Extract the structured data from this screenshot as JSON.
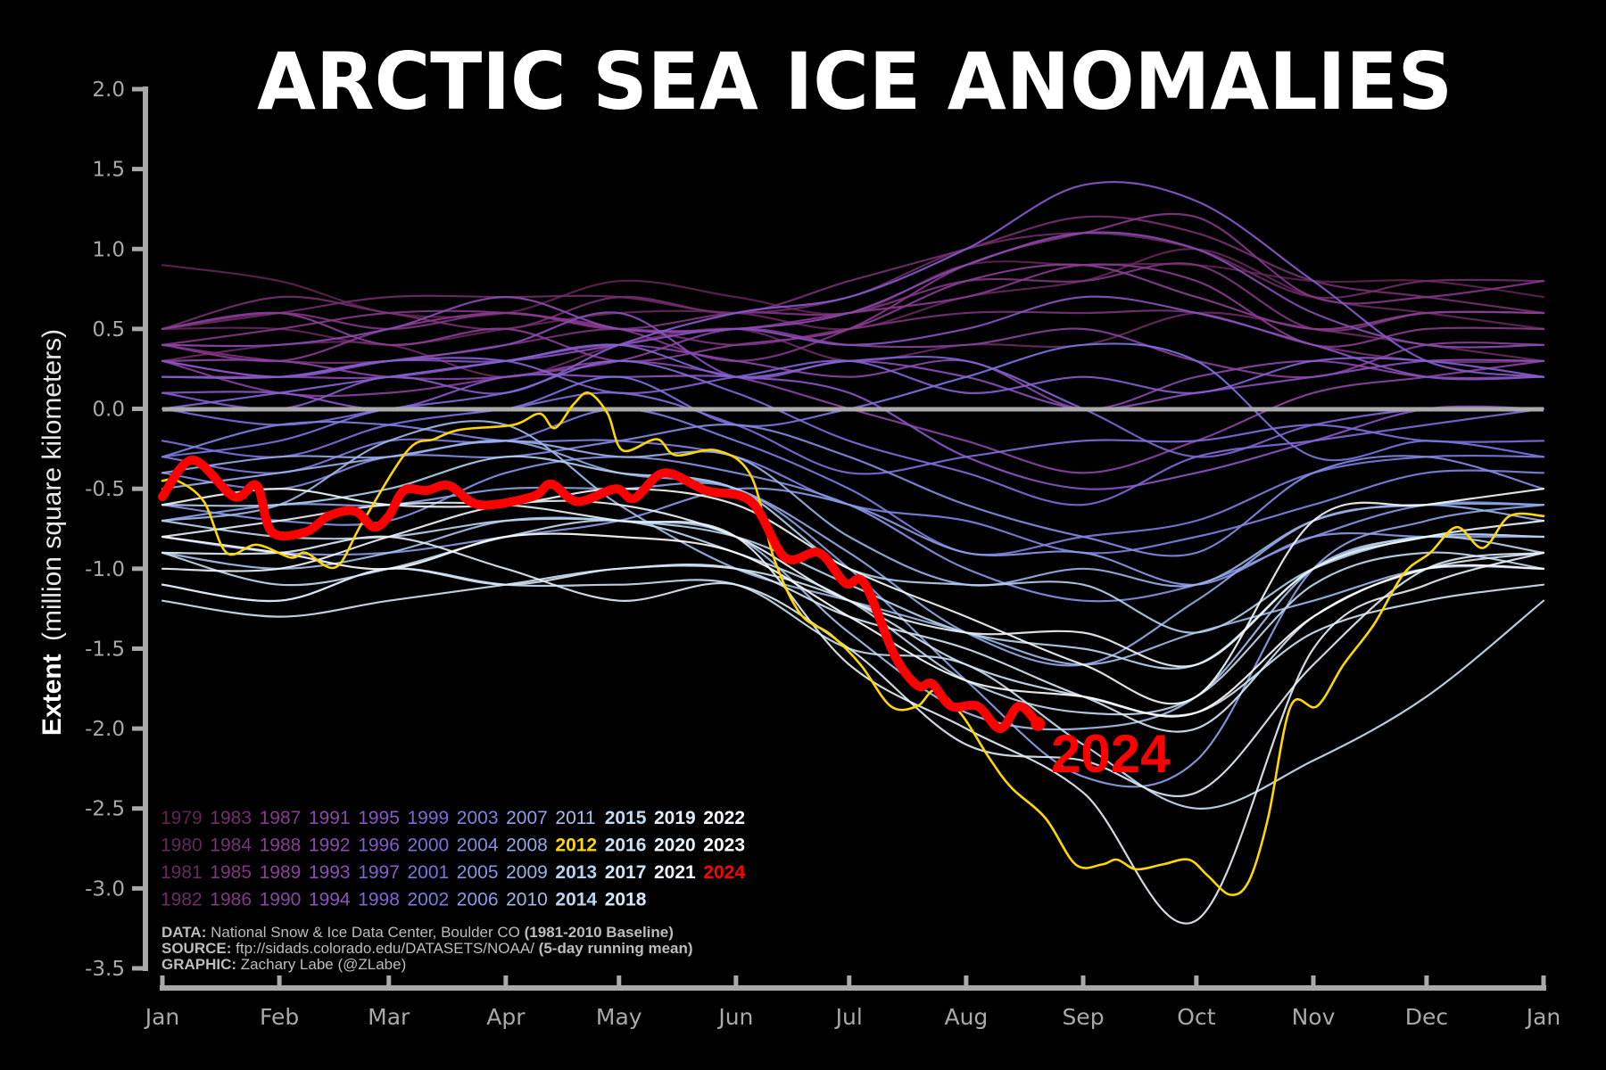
{
  "chart_data": {
    "type": "line",
    "title": "ARCTIC SEA ICE ANOMALIES",
    "ylabel_bold": "Extent",
    "ylabel_rest": "(million square kilometers)",
    "ylim": [
      -3.5,
      2.0
    ],
    "yticks": [
      "2.0",
      "1.5",
      "1.0",
      "0.5",
      "0.0",
      "-0.5",
      "-1.0",
      "-1.5",
      "-2.0",
      "-2.5",
      "-3.0",
      "-3.5"
    ],
    "xlim_days": [
      0,
      366
    ],
    "xticks": [
      "Jan",
      "Feb",
      "Mar",
      "Apr",
      "May",
      "Jun",
      "Jul",
      "Aug",
      "Sep",
      "Oct",
      "Nov",
      "Dec",
      "Jan"
    ],
    "xtick_days": [
      0,
      31,
      60,
      91,
      121,
      152,
      182,
      213,
      244,
      274,
      305,
      335,
      366
    ],
    "zero_line_color": "#aaaaaa",
    "colormap_stops": [
      {
        "year": 1979,
        "color": "#5e2452"
      },
      {
        "year": 1987,
        "color": "#8b3a90"
      },
      {
        "year": 1995,
        "color": "#8a56c8"
      },
      {
        "year": 2001,
        "color": "#7a74e0"
      },
      {
        "year": 2007,
        "color": "#8fa2e6"
      },
      {
        "year": 2013,
        "color": "#b3d2ee"
      },
      {
        "year": 2023,
        "color": "#ffffff"
      }
    ],
    "highlight_colors": {
      "2012": "#ffd700",
      "2024": "#ff0000"
    },
    "current_year_label": "2024",
    "monthly_x_days": [
      0,
      31,
      60,
      91,
      121,
      152,
      182,
      213,
      244,
      274,
      305,
      335,
      366
    ],
    "series": [
      {
        "name": "1979",
        "values": [
          0.9,
          0.8,
          0.6,
          0.6,
          0.8,
          0.7,
          0.6,
          0.9,
          0.9,
          0.9,
          0.8,
          0.8,
          0.7
        ]
      },
      {
        "name": "1980",
        "values": [
          0.5,
          0.5,
          0.4,
          0.5,
          0.6,
          0.6,
          0.5,
          0.7,
          0.8,
          1.0,
          0.7,
          0.6,
          0.5
        ]
      },
      {
        "name": "1981",
        "values": [
          0.3,
          0.4,
          0.4,
          0.2,
          0.4,
          0.5,
          0.3,
          0.4,
          0.4,
          0.6,
          0.5,
          0.4,
          0.3
        ]
      },
      {
        "name": "1982",
        "values": [
          0.5,
          0.6,
          0.7,
          0.7,
          0.7,
          0.6,
          0.7,
          1.0,
          1.1,
          1.0,
          0.7,
          0.8,
          0.8
        ]
      },
      {
        "name": "1983",
        "values": [
          0.5,
          0.7,
          0.6,
          0.5,
          0.7,
          0.6,
          0.8,
          1.0,
          1.2,
          1.1,
          0.8,
          0.7,
          0.6
        ]
      },
      {
        "name": "1984",
        "values": [
          0.4,
          0.3,
          0.3,
          0.4,
          0.5,
          0.4,
          0.5,
          0.6,
          0.6,
          0.6,
          0.4,
          0.3,
          0.3
        ]
      },
      {
        "name": "1985",
        "values": [
          0.5,
          0.6,
          0.5,
          0.6,
          0.5,
          0.6,
          0.6,
          0.8,
          0.8,
          0.9,
          0.5,
          0.6,
          0.6
        ]
      },
      {
        "name": "1986",
        "values": [
          0.4,
          0.5,
          0.6,
          0.6,
          0.5,
          0.3,
          0.5,
          0.9,
          1.1,
          1.2,
          0.7,
          0.7,
          0.8
        ]
      },
      {
        "name": "1987",
        "values": [
          0.4,
          0.3,
          0.5,
          0.6,
          0.5,
          0.5,
          0.6,
          0.7,
          0.9,
          0.8,
          0.4,
          0.5,
          0.5
        ]
      },
      {
        "name": "1988",
        "values": [
          0.5,
          0.6,
          0.4,
          0.5,
          0.3,
          0.4,
          0.5,
          0.8,
          0.9,
          0.7,
          0.5,
          0.6,
          0.6
        ]
      },
      {
        "name": "1989",
        "values": [
          0.3,
          0.1,
          0.1,
          0.2,
          0.3,
          0.5,
          0.4,
          0.4,
          0.5,
          0.3,
          0.2,
          0.4,
          0.4
        ]
      },
      {
        "name": "1990",
        "values": [
          0.3,
          0.3,
          0.2,
          0.2,
          0.3,
          0.2,
          0.0,
          -0.2,
          -0.4,
          -0.2,
          0.1,
          0.2,
          0.3
        ]
      },
      {
        "name": "1991",
        "values": [
          0.2,
          0.2,
          0.2,
          0.3,
          0.4,
          0.3,
          0.2,
          0.3,
          0.0,
          0.2,
          0.3,
          0.2,
          0.2
        ]
      },
      {
        "name": "1992",
        "values": [
          0.4,
          0.4,
          0.5,
          0.7,
          0.5,
          0.5,
          0.6,
          0.9,
          1.1,
          1.0,
          0.6,
          0.4,
          0.4
        ]
      },
      {
        "name": "1993",
        "values": [
          0.3,
          0.2,
          0.3,
          0.4,
          0.6,
          0.2,
          0.3,
          0.2,
          0.0,
          0.1,
          0.2,
          0.3,
          0.3
        ]
      },
      {
        "name": "1994",
        "values": [
          0.3,
          0.2,
          0.3,
          0.3,
          0.4,
          0.5,
          0.4,
          0.5,
          0.7,
          0.6,
          0.4,
          0.2,
          0.2
        ]
      },
      {
        "name": "1995",
        "values": [
          0.1,
          0.1,
          0.0,
          0.2,
          0.2,
          0.2,
          0.1,
          -0.3,
          -0.5,
          -0.4,
          -0.2,
          0.0,
          0.0
        ]
      },
      {
        "name": "1996",
        "values": [
          0.1,
          0.0,
          0.2,
          0.1,
          0.4,
          0.6,
          0.7,
          1.0,
          1.4,
          1.3,
          0.8,
          0.3,
          0.2
        ]
      },
      {
        "name": "1997",
        "values": [
          0.2,
          0.2,
          0.3,
          0.3,
          0.1,
          0.2,
          0.3,
          0.1,
          0.2,
          0.1,
          0.3,
          0.3,
          0.2
        ]
      },
      {
        "name": "1998",
        "values": [
          0.0,
          0.1,
          0.2,
          0.3,
          0.4,
          0.2,
          0.3,
          0.3,
          0.0,
          -0.3,
          -0.1,
          0.0,
          0.0
        ]
      },
      {
        "name": "1999",
        "values": [
          0.0,
          -0.1,
          0.0,
          0.1,
          0.3,
          0.1,
          -0.2,
          -0.4,
          -0.6,
          -0.3,
          -0.2,
          -0.1,
          0.0
        ]
      },
      {
        "name": "2000",
        "values": [
          -0.2,
          -0.3,
          -0.1,
          0.0,
          0.1,
          -0.1,
          -0.4,
          -0.3,
          -0.2,
          -0.2,
          -0.1,
          -0.2,
          -0.2
        ]
      },
      {
        "name": "2001",
        "values": [
          -0.3,
          -0.2,
          0.0,
          0.0,
          0.2,
          -0.1,
          0.0,
          0.2,
          0.4,
          0.3,
          -0.3,
          -0.2,
          -0.3
        ]
      },
      {
        "name": "2002",
        "values": [
          -0.3,
          -0.4,
          -0.2,
          -0.2,
          0.0,
          -0.2,
          -0.5,
          -0.9,
          -0.8,
          -0.7,
          -0.4,
          -0.3,
          -0.3
        ]
      },
      {
        "name": "2003",
        "values": [
          -0.3,
          -0.1,
          -0.1,
          -0.2,
          -0.2,
          -0.3,
          -0.6,
          -0.7,
          -0.9,
          -0.8,
          -0.6,
          -0.4,
          -0.4
        ]
      },
      {
        "name": "2004",
        "values": [
          -0.4,
          -0.5,
          -0.3,
          -0.3,
          -0.2,
          -0.1,
          -0.3,
          -0.6,
          -0.8,
          -0.9,
          -0.4,
          -0.3,
          -0.5
        ]
      },
      {
        "name": "2005",
        "values": [
          -0.6,
          -0.7,
          -0.7,
          -0.4,
          -0.3,
          -0.4,
          -0.6,
          -1.0,
          -1.2,
          -1.1,
          -0.8,
          -0.6,
          -0.6
        ]
      },
      {
        "name": "2006",
        "values": [
          -0.8,
          -0.9,
          -0.9,
          -0.8,
          -0.7,
          -0.5,
          -0.6,
          -0.9,
          -0.9,
          -1.1,
          -0.8,
          -0.8,
          -0.8
        ]
      },
      {
        "name": "2007",
        "values": [
          -0.7,
          -0.6,
          -0.6,
          -0.5,
          -0.5,
          -0.5,
          -1.0,
          -1.7,
          -2.3,
          -2.2,
          -1.0,
          -0.7,
          -0.6
        ]
      },
      {
        "name": "2008",
        "values": [
          -0.4,
          -0.3,
          -0.3,
          -0.2,
          -0.4,
          -0.5,
          -0.9,
          -1.4,
          -1.6,
          -1.2,
          -0.7,
          -0.6,
          -0.6
        ]
      },
      {
        "name": "2009",
        "values": [
          -0.5,
          -0.4,
          -0.3,
          -0.2,
          -0.3,
          -0.3,
          -0.8,
          -1.1,
          -1.0,
          -1.1,
          -0.7,
          -0.6,
          -0.7
        ]
      },
      {
        "name": "2010",
        "values": [
          -0.7,
          -0.6,
          -0.2,
          -0.1,
          -0.6,
          -1.0,
          -1.2,
          -1.4,
          -1.6,
          -1.4,
          -1.2,
          -1.0,
          -1.0
        ]
      },
      {
        "name": "2011",
        "values": [
          -0.9,
          -1.0,
          -0.9,
          -0.7,
          -0.7,
          -0.8,
          -1.4,
          -1.9,
          -2.0,
          -1.8,
          -1.0,
          -0.8,
          -0.8
        ]
      },
      {
        "name": "2013",
        "values": [
          -0.6,
          -0.6,
          -0.5,
          -0.3,
          -0.4,
          -0.5,
          -1.0,
          -1.1,
          -1.1,
          -1.4,
          -1.0,
          -0.8,
          -0.8
        ]
      },
      {
        "name": "2014",
        "values": [
          -0.7,
          -0.8,
          -0.8,
          -0.7,
          -0.7,
          -0.8,
          -1.1,
          -1.4,
          -1.5,
          -1.6,
          -1.0,
          -0.8,
          -0.9
        ]
      },
      {
        "name": "2015",
        "values": [
          -0.9,
          -1.1,
          -1.0,
          -0.8,
          -0.7,
          -0.9,
          -1.2,
          -1.7,
          -1.9,
          -1.8,
          -1.1,
          -0.9,
          -1.0
        ]
      },
      {
        "name": "2016",
        "values": [
          -1.1,
          -1.2,
          -1.0,
          -1.1,
          -1.1,
          -1.1,
          -1.5,
          -1.6,
          -2.1,
          -2.5,
          -2.2,
          -1.8,
          -1.2
        ]
      },
      {
        "name": "2017",
        "values": [
          -1.2,
          -1.3,
          -1.2,
          -1.1,
          -1.0,
          -1.0,
          -1.2,
          -1.6,
          -1.8,
          -1.9,
          -1.4,
          -1.2,
          -1.1
        ]
      },
      {
        "name": "2018",
        "values": [
          -1.1,
          -1.2,
          -1.0,
          -1.1,
          -1.0,
          -1.0,
          -1.3,
          -1.5,
          -1.8,
          -2.0,
          -1.3,
          -1.0,
          -0.9
        ]
      },
      {
        "name": "2019",
        "values": [
          -0.9,
          -0.9,
          -0.8,
          -1.0,
          -1.2,
          -1.1,
          -1.5,
          -2.1,
          -2.2,
          -2.4,
          -1.6,
          -1.0,
          -0.9
        ]
      },
      {
        "name": "2020",
        "values": [
          -0.8,
          -0.7,
          -0.6,
          -0.6,
          -0.7,
          -0.8,
          -1.6,
          -2.0,
          -2.4,
          -3.2,
          -1.5,
          -1.1,
          -0.9
        ]
      },
      {
        "name": "2021",
        "values": [
          -1.0,
          -1.0,
          -0.8,
          -0.6,
          -0.6,
          -0.8,
          -1.2,
          -1.4,
          -1.4,
          -1.6,
          -1.0,
          -0.8,
          -0.7
        ]
      },
      {
        "name": "2022",
        "values": [
          -0.6,
          -0.5,
          -0.6,
          -0.6,
          -0.5,
          -0.6,
          -1.0,
          -1.3,
          -1.6,
          -1.8,
          -0.7,
          -0.6,
          -0.5
        ]
      },
      {
        "name": "2023",
        "values": [
          -0.8,
          -0.9,
          -1.0,
          -0.8,
          -0.8,
          -0.9,
          -1.3,
          -1.7,
          -1.8,
          -1.9,
          -1.3,
          -1.0,
          -1.0
        ]
      },
      {
        "name": "2012",
        "x": [
          0,
          4,
          11,
          17,
          25,
          34,
          38,
          46,
          53,
          65,
          72,
          79,
          93,
          100,
          104,
          109,
          113,
          118,
          122,
          131,
          136,
          147,
          156,
          162,
          169,
          177,
          185,
          193,
          200,
          205,
          212,
          219,
          225,
          234,
          242,
          249,
          253,
          258,
          265,
          272,
          277,
          283,
          288,
          293,
          299,
          306,
          313,
          321,
          329,
          336,
          343,
          350,
          357,
          366
        ],
        "values": [
          -0.45,
          -0.45,
          -0.58,
          -0.9,
          -0.85,
          -0.93,
          -0.9,
          -0.99,
          -0.71,
          -0.26,
          -0.19,
          -0.13,
          -0.1,
          -0.03,
          -0.12,
          0.03,
          0.1,
          -0.03,
          -0.26,
          -0.19,
          -0.29,
          -0.26,
          -0.42,
          -0.93,
          -1.28,
          -1.41,
          -1.6,
          -1.86,
          -1.86,
          -1.76,
          -1.92,
          -2.18,
          -2.37,
          -2.56,
          -2.85,
          -2.85,
          -2.82,
          -2.88,
          -2.85,
          -2.82,
          -2.92,
          -3.04,
          -2.95,
          -2.56,
          -1.86,
          -1.86,
          -1.6,
          -1.35,
          -1.03,
          -0.9,
          -0.74,
          -0.87,
          -0.67,
          -0.67
        ]
      },
      {
        "name": "2024",
        "x": [
          0,
          8,
          19,
          25,
          29,
          38,
          44,
          51,
          56,
          60,
          64,
          70,
          76,
          84,
          98,
          103,
          110,
          120,
          125,
          133,
          144,
          156,
          165,
          174,
          181,
          186,
          194,
          200,
          204,
          209,
          216,
          222,
          227,
          232
        ],
        "values": [
          -0.55,
          -0.32,
          -0.55,
          -0.48,
          -0.77,
          -0.77,
          -0.67,
          -0.64,
          -0.74,
          -0.67,
          -0.51,
          -0.51,
          -0.48,
          -0.6,
          -0.55,
          -0.47,
          -0.58,
          -0.5,
          -0.56,
          -0.4,
          -0.51,
          -0.58,
          -0.93,
          -0.9,
          -1.09,
          -1.09,
          -1.54,
          -1.73,
          -1.72,
          -1.86,
          -1.86,
          -2.0,
          -1.86,
          -1.97
        ]
      }
    ]
  },
  "legend": {
    "columns": [
      [
        "1979",
        "1980",
        "1981",
        "1982"
      ],
      [
        "1983",
        "1984",
        "1985",
        "1986"
      ],
      [
        "1987",
        "1988",
        "1989",
        "1990"
      ],
      [
        "1991",
        "1992",
        "1993",
        "1994"
      ],
      [
        "1995",
        "1996",
        "1997",
        "1998"
      ],
      [
        "1999",
        "2000",
        "2001",
        "2002"
      ],
      [
        "2003",
        "2004",
        "2005",
        "2006"
      ],
      [
        "2007",
        "2008",
        "2009",
        "2010"
      ],
      [
        "2011",
        "2012",
        "2013",
        "2014"
      ],
      [
        "2015",
        "2016",
        "2017",
        "2018"
      ],
      [
        "2019",
        "2020",
        "2021"
      ],
      [
        "2022",
        "2023",
        "2024"
      ]
    ]
  },
  "footer": {
    "data_label": "DATA:",
    "data_text": "National Snow & Ice Data Center, Boulder CO",
    "data_note": "(1981-2010 Baseline)",
    "source_label": "SOURCE:",
    "source_text": "ftp://sidads.colorado.edu/DATASETS/NOAA/",
    "source_note": "(5-day running mean)",
    "graphic_label": "GRAPHIC:",
    "graphic_text": "Zachary Labe (@ZLabe)"
  }
}
